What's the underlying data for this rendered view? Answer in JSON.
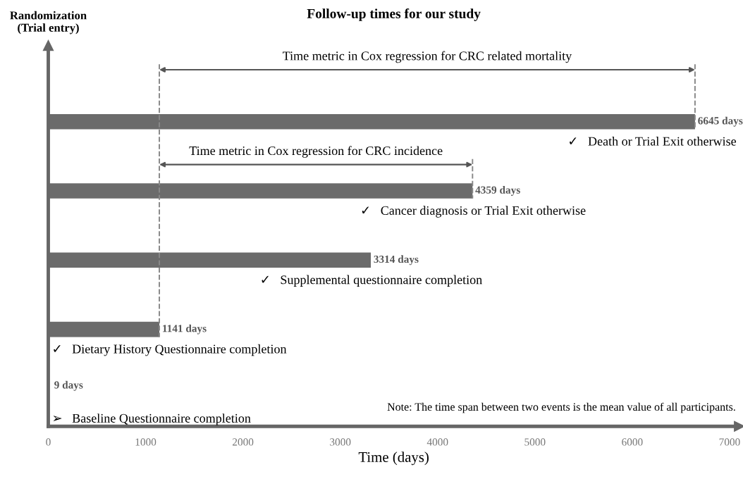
{
  "chart_data": {
    "type": "bar",
    "orientation": "horizontal",
    "title": "Follow-up times for our study",
    "xlabel": "Time (days)",
    "ylabel": "Randomization\n(Trial entry)",
    "categories": [
      null,
      null,
      null,
      null,
      null
    ],
    "values": [
      6645,
      4359,
      3314,
      1141,
      9
    ],
    "value_labels": [
      "6645 days",
      "4359 days",
      "3314 days",
      "1141 days",
      "9 days"
    ],
    "color": "#6b6b6b",
    "annotations": [
      "✓   Death or Trial Exit otherwise",
      "✓   Cancer diagnosis or Trial Exit otherwise",
      "✓   Supplemental questionnaire completion",
      "✓   Dietary History Questionnaire completion",
      "➢   Baseline Questionnaire completion",
      "Time metric in Cox regression for CRC related mortality",
      "Time metric in Cox regression for CRC incidence",
      "Note: The time span between two events is the mean value of all participants."
    ],
    "ref_lines": [
      {
        "axis": "x",
        "value": 1141,
        "color": "#888888",
        "line_style": "dashed"
      },
      {
        "axis": "x",
        "value": 6645,
        "color": "#888888",
        "line_style": "dashed"
      },
      {
        "axis": "x",
        "value": 4359,
        "color": "#888888",
        "line_style": "dashed"
      }
    ],
    "xlim": [
      0,
      7100
    ],
    "xticks": [
      0,
      1000,
      2000,
      3000,
      4000,
      5000,
      6000,
      7000
    ],
    "tick_labels": "x",
    "grid": false,
    "legend": false
  }
}
